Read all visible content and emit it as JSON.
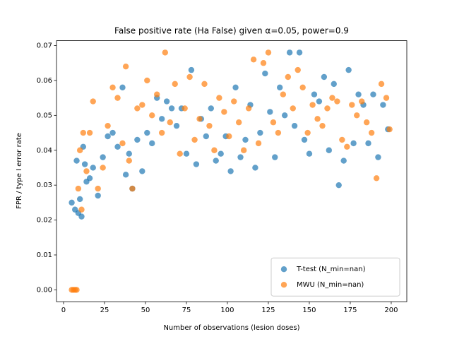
{
  "chart_data": {
    "type": "scatter",
    "title": "False positive rate (Ha False) given α=0.05, power=0.9",
    "xlabel": "Number of observations (lesion doses)",
    "ylabel": "FPR / type I error rate",
    "xlim": [
      -4.3,
      209.5
    ],
    "ylim": [
      -0.0034,
      0.0714
    ],
    "xticks": [
      0,
      25,
      50,
      75,
      100,
      125,
      150,
      175,
      200
    ],
    "yticks": [
      {
        "value": 0,
        "label": "0.00"
      },
      {
        "value": 0.01,
        "label": "0.01"
      },
      {
        "value": 0.02,
        "label": "0.02"
      },
      {
        "value": 0.03,
        "label": "0.03"
      },
      {
        "value": 0.04,
        "label": "0.04"
      },
      {
        "value": 0.05,
        "label": "0.05"
      },
      {
        "value": 0.06,
        "label": "0.06"
      },
      {
        "value": 0.07,
        "label": "0.07"
      }
    ],
    "legend": "lower right",
    "series": [
      {
        "name": "T-test (N_min=nan)",
        "color": "#1f77b4",
        "x": [
          5,
          7,
          8,
          9,
          10,
          11,
          12,
          13,
          14,
          16,
          18,
          21,
          24,
          27,
          30,
          33,
          36,
          38,
          40,
          42,
          45,
          48,
          51,
          54,
          57,
          60,
          63,
          66,
          69,
          72,
          75,
          78,
          81,
          84,
          87,
          90,
          93,
          96,
          99,
          102,
          105,
          108,
          111,
          114,
          117,
          120,
          123,
          126,
          129,
          132,
          135,
          138,
          141,
          144,
          147,
          150,
          153,
          156,
          159,
          162,
          165,
          168,
          171,
          174,
          177,
          180,
          183,
          186,
          189,
          192,
          195,
          198
        ],
        "values": [
          0.025,
          0.023,
          0.037,
          0.022,
          0.026,
          0.021,
          0.041,
          0.036,
          0.031,
          0.032,
          0.035,
          0.027,
          0.038,
          0.044,
          0.045,
          0.041,
          0.058,
          0.033,
          0.039,
          0.029,
          0.043,
          0.034,
          0.045,
          0.042,
          0.055,
          0.049,
          0.054,
          0.052,
          0.047,
          0.052,
          0.039,
          0.063,
          0.036,
          0.049,
          0.044,
          0.052,
          0.037,
          0.039,
          0.044,
          0.034,
          0.058,
          0.038,
          0.043,
          0.053,
          0.035,
          0.045,
          0.062,
          0.051,
          0.038,
          0.058,
          0.05,
          0.068,
          0.047,
          0.068,
          0.043,
          0.039,
          0.056,
          0.054,
          0.061,
          0.04,
          0.059,
          0.03,
          0.037,
          0.063,
          0.042,
          0.056,
          0.053,
          0.042,
          0.056,
          0.038,
          0.053,
          0.046
        ]
      },
      {
        "name": "MWU (N_min=nan)",
        "color": "#ff7f0e",
        "x": [
          5,
          6,
          7,
          8,
          9,
          10,
          11,
          12,
          14,
          16,
          18,
          21,
          24,
          27,
          30,
          33,
          36,
          38,
          40,
          42,
          45,
          48,
          51,
          54,
          57,
          60,
          62,
          65,
          68,
          71,
          74,
          77,
          80,
          83,
          86,
          89,
          92,
          95,
          98,
          101,
          104,
          107,
          110,
          113,
          116,
          119,
          122,
          125,
          128,
          131,
          134,
          137,
          140,
          143,
          146,
          149,
          152,
          155,
          158,
          161,
          164,
          167,
          170,
          173,
          176,
          179,
          182,
          185,
          188,
          191,
          194,
          197,
          199
        ],
        "values": [
          0,
          0,
          0,
          0,
          0.029,
          0.04,
          0.023,
          0.045,
          0.034,
          0.045,
          0.054,
          0.029,
          0.035,
          0.047,
          0.058,
          0.055,
          0.042,
          0.064,
          0.037,
          0.029,
          0.052,
          0.053,
          0.06,
          0.05,
          0.056,
          0.045,
          0.068,
          0.048,
          0.059,
          0.039,
          0.052,
          0.061,
          0.043,
          0.049,
          0.059,
          0.047,
          0.04,
          0.055,
          0.051,
          0.044,
          0.054,
          0.048,
          0.04,
          0.052,
          0.066,
          0.042,
          0.065,
          0.068,
          0.048,
          0.045,
          0.056,
          0.061,
          0.052,
          0.063,
          0.058,
          0.045,
          0.053,
          0.049,
          0.047,
          0.052,
          0.055,
          0.054,
          0.043,
          0.041,
          0.053,
          0.05,
          0.054,
          0.048,
          0.045,
          0.032,
          0.059,
          0.055,
          0.046
        ]
      }
    ]
  }
}
